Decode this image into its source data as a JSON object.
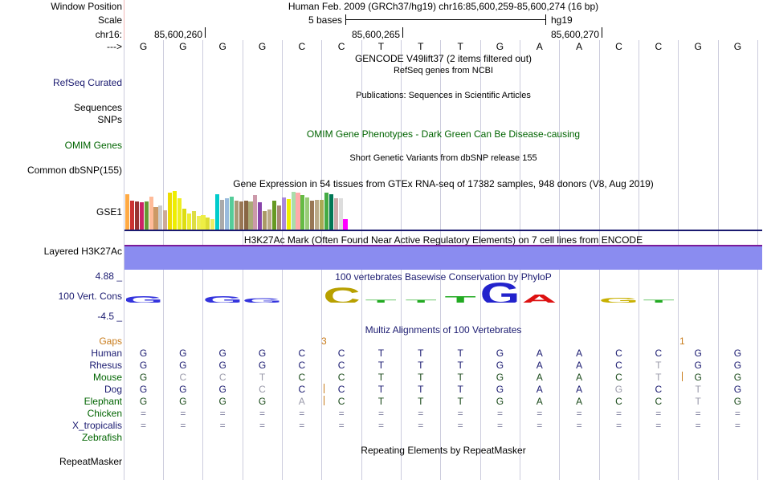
{
  "header": {
    "window_position_label": "Window Position",
    "window_position_value": "Human Feb. 2009 (GRCh37/hg19)   chr16:85,600,259-85,600,274 (16 bp)",
    "scale_label": "Scale",
    "scale_value": "5 bases",
    "scale_assembly": "hg19",
    "chrom_label": "chr16:",
    "coord_1": "85,600,260",
    "coord_2": "85,600,265",
    "coord_3": "85,600,270",
    "strand_label": "--->"
  },
  "sequence": [
    "G",
    "G",
    "G",
    "G",
    "C",
    "C",
    "T",
    "T",
    "T",
    "G",
    "A",
    "A",
    "C",
    "C",
    "G",
    "G"
  ],
  "tracks": {
    "gencode_title": "GENCODE V49lift37 (2 items filtered out)",
    "refseq_subtitle": "RefSeq genes from NCBI",
    "refseq_label": "RefSeq Curated",
    "publications_title": "Publications: Sequences in Scientific Articles",
    "sequences_label": "Sequences",
    "snps_label": "SNPs",
    "omim_title": "OMIM Gene Phenotypes - Dark Green Can Be Disease-causing",
    "omim_label": "OMIM Genes",
    "dbsnp_title": "Short Genetic Variants from dbSNP release 155",
    "dbsnp_label": "Common dbSNP(155)",
    "gtex_title": "Gene Expression in 54 tissues from GTEx RNA-seq of 17382 samples, 948 donors (V8, Aug 2019)",
    "gtex_label": "GSE1",
    "h3k27ac_title": "H3K27Ac Mark (Often Found Near Active Regulatory Elements) on 7 cell lines from ENCODE",
    "h3k27ac_label": "Layered H3K27Ac",
    "cons_title": "100 vertebrates Basewise Conservation by PhyloP",
    "cons_label": "100 Vert. Cons",
    "cons_max": "4.88 _",
    "cons_min": "-4.5 _",
    "multiz_title": "Multiz Alignments of 100 Vertebrates",
    "gaps_label": "Gaps",
    "gap_mark_1": "3",
    "gap_mark_2": "1",
    "rmsk_title": "Repeating Elements by RepeatMasker",
    "rmsk_label": "RepeatMasker"
  },
  "gtex_colors": [
    "#ffaa44",
    "#cc3333",
    "#993333",
    "#cc2266",
    "#669933",
    "#ffbb99",
    "#cc9966",
    "#cccccc",
    "#ccaa99",
    "#eedd00",
    "#eeee00",
    "#eeee22",
    "#dddd11",
    "#eeee33",
    "#dddd44",
    "#eeee55",
    "#eeee44",
    "#dddd33",
    "#eeee66",
    "#00cccc",
    "#aaaaaa",
    "#99bbdd",
    "#55cc99",
    "#aa9977",
    "#997755",
    "#886644",
    "#aaaa77",
    "#cc99aa",
    "#8844aa",
    "#aa9966",
    "#bbaa88",
    "#669922",
    "#aa8877",
    "#aa88dd",
    "#eeee00",
    "#aaddaa",
    "#ffaaaa",
    "#66bb44",
    "#99cc77",
    "#997755",
    "#bbaa88",
    "#aaaa55",
    "#44aa44",
    "#007755",
    "#ccaaaa",
    "#dddddd",
    "#ff00ff"
  ],
  "gtex_heights": [
    0.92,
    0.75,
    0.72,
    0.7,
    0.72,
    0.85,
    0.58,
    0.62,
    0.5,
    0.95,
    1.0,
    0.82,
    0.55,
    0.42,
    0.48,
    0.35,
    0.38,
    0.32,
    0.28,
    0.92,
    0.78,
    0.82,
    0.85,
    0.76,
    0.72,
    0.74,
    0.72,
    0.9,
    0.7,
    0.48,
    0.52,
    0.75,
    0.62,
    0.84,
    0.8,
    0.97,
    0.95,
    0.9,
    0.84,
    0.74,
    0.78,
    0.78,
    0.96,
    0.92,
    0.82,
    0.82,
    0.28
  ],
  "species": [
    {
      "name": "Human",
      "color": "#1a1a70",
      "bases": [
        "G",
        "G",
        "G",
        "G",
        "C",
        "C",
        "T",
        "T",
        "T",
        "G",
        "A",
        "A",
        "C",
        "C",
        "G",
        "G"
      ]
    },
    {
      "name": "Rhesus",
      "color": "#1a1a70",
      "bases": [
        "G",
        "G",
        "G",
        "G",
        "C",
        "C",
        "T",
        "T",
        "T",
        "G",
        "A",
        "A",
        "C",
        "T",
        "G",
        "G"
      ]
    },
    {
      "name": "Mouse",
      "color": "#006400",
      "bases": [
        "G",
        "C",
        "C",
        "T",
        "C",
        "C",
        "T",
        "T",
        "T",
        "G",
        "A",
        "A",
        "C",
        "T",
        "G",
        "G"
      ]
    },
    {
      "name": "Dog",
      "color": "#1a1a70",
      "bases": [
        "G",
        "G",
        "G",
        "C",
        "C",
        "C",
        "T",
        "T",
        "T",
        "G",
        "A",
        "A",
        "G",
        "C",
        "T",
        "G"
      ]
    },
    {
      "name": "Elephant",
      "color": "#006400",
      "bases": [
        "G",
        "G",
        "G",
        "G",
        "A",
        "C",
        "T",
        "T",
        "T",
        "G",
        "A",
        "A",
        "C",
        "C",
        "T",
        "G"
      ]
    },
    {
      "name": "Chicken",
      "color": "#006400",
      "bases": [
        "=",
        "=",
        "=",
        "=",
        "=",
        "=",
        "=",
        "=",
        "=",
        "=",
        "=",
        "=",
        "=",
        "=",
        "=",
        "="
      ]
    },
    {
      "name": "X_tropicalis",
      "color": "#1a1a70",
      "bases": [
        "=",
        "=",
        "=",
        "=",
        "=",
        "=",
        "=",
        "=",
        "=",
        "=",
        "=",
        "=",
        "=",
        "=",
        "=",
        "="
      ]
    },
    {
      "name": "Zebrafish",
      "color": "#006400",
      "bases": [
        "",
        "",
        "",
        "",
        "",
        "",
        "",
        "",
        "",
        "",
        "",
        "",
        "",
        "",
        "",
        ""
      ]
    }
  ],
  "conservation_logo": [
    {
      "base": "G",
      "score": 0.25,
      "color": "#3333dd"
    },
    {
      "base": "",
      "score": 0,
      "color": "#ffffff"
    },
    {
      "base": "G",
      "score": 0.25,
      "color": "#3333dd"
    },
    {
      "base": "G",
      "score": 0.15,
      "color": "#3333dd"
    },
    {
      "base": "",
      "score": 0,
      "color": "#ffffff"
    },
    {
      "base": "C",
      "score": 0.55,
      "color": "#b8a000"
    },
    {
      "base": "T",
      "score": 0.1,
      "color": "#22aa22"
    },
    {
      "base": "T",
      "score": 0.1,
      "color": "#22aa22"
    },
    {
      "base": "T",
      "score": 0.25,
      "color": "#22aa22"
    },
    {
      "base": "G",
      "score": 0.75,
      "color": "#2222cc"
    },
    {
      "base": "A",
      "score": 0.3,
      "color": "#dd1111"
    },
    {
      "base": "",
      "score": 0,
      "color": "#ffffff"
    },
    {
      "base": "G",
      "score": 0.18,
      "color": "#c8b000"
    },
    {
      "base": "T",
      "score": 0.05,
      "color": "#22aa22"
    },
    {
      "base": "",
      "score": 0,
      "color": "#ffffff"
    },
    {
      "base": "",
      "score": 0,
      "color": "#ffffff"
    }
  ]
}
